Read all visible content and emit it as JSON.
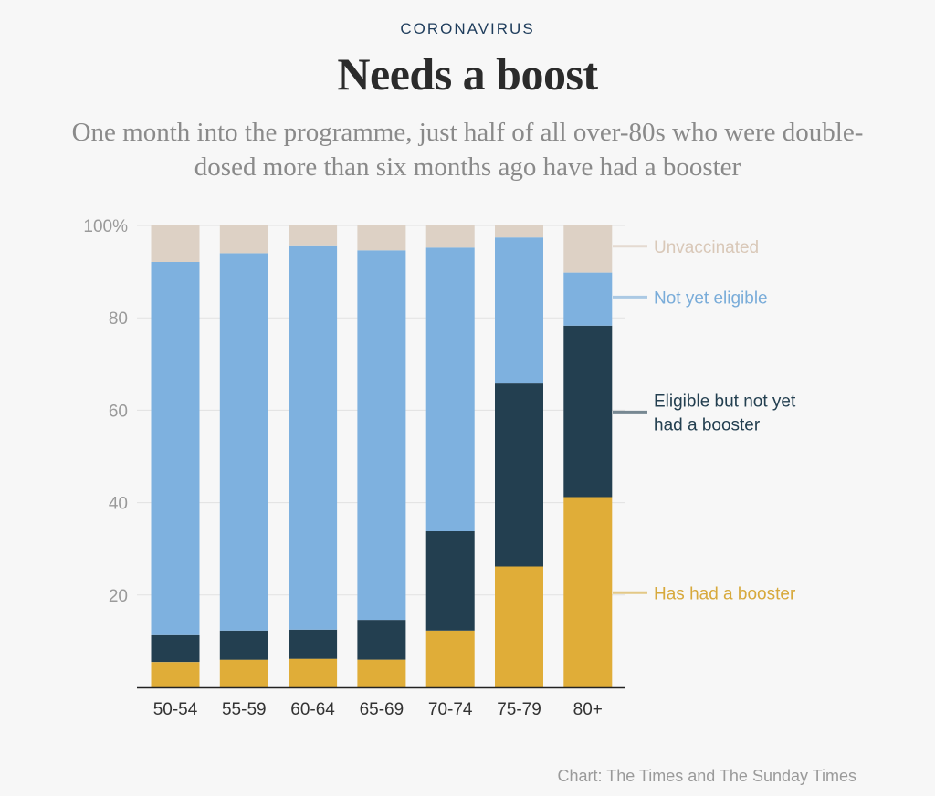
{
  "header": {
    "kicker": "CORONAVIRUS",
    "title": "Needs a boost",
    "subtitle": "One month into the programme, just half of all over-80s who were double-dosed more than six months ago have had a booster"
  },
  "footer": {
    "source": "Chart: The Times and The Sunday Times"
  },
  "chart_data": {
    "type": "bar",
    "stacked": true,
    "categories": [
      "50-54",
      "55-59",
      "60-64",
      "65-69",
      "70-74",
      "75-79",
      "80+"
    ],
    "ylim": [
      0,
      100
    ],
    "yticks": [
      20,
      40,
      60,
      80,
      100
    ],
    "ytick_labels": [
      "20",
      "40",
      "60",
      "80",
      "100%"
    ],
    "grid": true,
    "legend_placement": "right",
    "series": [
      {
        "name": "Has had a booster",
        "color": "#e0ad38",
        "values": [
          5.5,
          6,
          6.2,
          6,
          12.3,
          26.2,
          41.2
        ]
      },
      {
        "name": "Eligible but not yet had a booster",
        "color": "#233f50",
        "values": [
          5.8,
          6.3,
          6.3,
          8.6,
          21.5,
          39.6,
          37.1
        ]
      },
      {
        "name": "Not yet eligible",
        "color": "#7eb1df",
        "values": [
          80.8,
          81.7,
          83.2,
          80,
          61.4,
          31.6,
          11.5
        ]
      },
      {
        "name": "Unvaccinated",
        "color": "#ddd1c5",
        "values": [
          7.9,
          6,
          4.3,
          5.4,
          4.8,
          2.6,
          10.2
        ]
      }
    ],
    "legend": [
      {
        "lines": [
          "Unvaccinated"
        ],
        "text_color": "#d9c8b8",
        "anchor_value": 95.5
      },
      {
        "lines": [
          "Not yet eligible"
        ],
        "text_color": "#79acd9",
        "anchor_value": 84.5
      },
      {
        "lines": [
          "Eligible but not yet",
          "had a booster"
        ],
        "text_color": "#233f50",
        "anchor_value": 59.6
      },
      {
        "lines": [
          "Has had a booster"
        ],
        "text_color": "#d7a93c",
        "anchor_value": 20.5
      }
    ]
  }
}
